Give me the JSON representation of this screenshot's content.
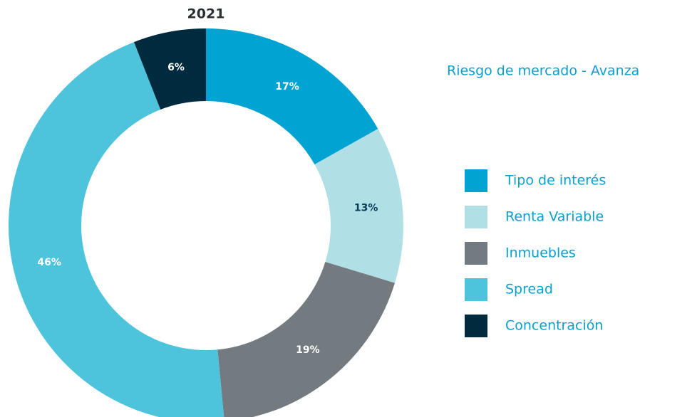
{
  "chart_data": {
    "type": "donut",
    "title": "2021",
    "legend_title": "Riesgo de mercado - Avanza",
    "categories": [
      "Tipo de interés",
      "Renta Variable",
      "Inmuebles",
      "Spread",
      "Concentración"
    ],
    "values": [
      17,
      13,
      19,
      46,
      6
    ],
    "value_labels": [
      "17%",
      "13%",
      "19%",
      "46%",
      "6%"
    ],
    "colors": [
      "#00a3d2",
      "#b0e0e6",
      "#737a80",
      "#4dc3dc",
      "#002b3f"
    ],
    "legend": "right"
  }
}
